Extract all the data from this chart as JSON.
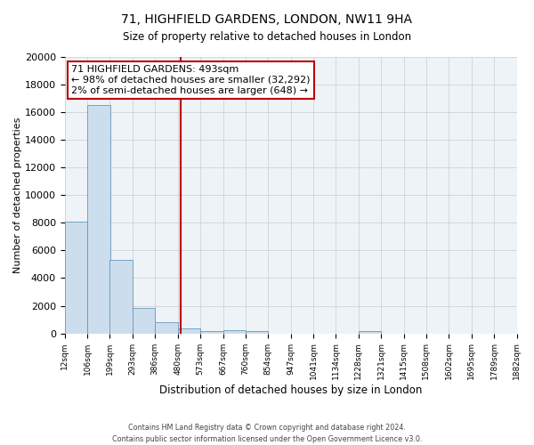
{
  "title": "71, HIGHFIELD GARDENS, LONDON, NW11 9HA",
  "subtitle": "Size of property relative to detached houses in London",
  "xlabel": "Distribution of detached houses by size in London",
  "ylabel": "Number of detached properties",
  "bar_color": "#ccdded",
  "bar_edge_color": "#6699bb",
  "background_color": "#eef3f8",
  "grid_color": "#cccccc",
  "bin_labels": [
    "12sqm",
    "106sqm",
    "199sqm",
    "293sqm",
    "386sqm",
    "480sqm",
    "573sqm",
    "667sqm",
    "760sqm",
    "854sqm",
    "947sqm",
    "1041sqm",
    "1134sqm",
    "1228sqm",
    "1321sqm",
    "1415sqm",
    "1508sqm",
    "1602sqm",
    "1695sqm",
    "1789sqm",
    "1882sqm"
  ],
  "bin_edges": [
    12,
    106,
    199,
    293,
    386,
    480,
    573,
    667,
    760,
    854,
    947,
    1041,
    1134,
    1228,
    1321,
    1415,
    1508,
    1602,
    1695,
    1789,
    1882
  ],
  "bar_heights": [
    8100,
    16500,
    5300,
    1850,
    800,
    350,
    150,
    200,
    150,
    0,
    0,
    0,
    0,
    150,
    0,
    0,
    0,
    0,
    0,
    0
  ],
  "property_size": 493,
  "marker_line_color": "#bb0000",
  "annotation_text_line1": "71 HIGHFIELD GARDENS: 493sqm",
  "annotation_text_line2": "← 98% of detached houses are smaller (32,292)",
  "annotation_text_line3": "2% of semi-detached houses are larger (648) →",
  "annotation_box_color": "#ffffff",
  "annotation_box_edge_color": "#bb0000",
  "ylim": [
    0,
    20000
  ],
  "yticks": [
    0,
    2000,
    4000,
    6000,
    8000,
    10000,
    12000,
    14000,
    16000,
    18000,
    20000
  ],
  "footer_line1": "Contains HM Land Registry data © Crown copyright and database right 2024.",
  "footer_line2": "Contains public sector information licensed under the Open Government Licence v3.0."
}
